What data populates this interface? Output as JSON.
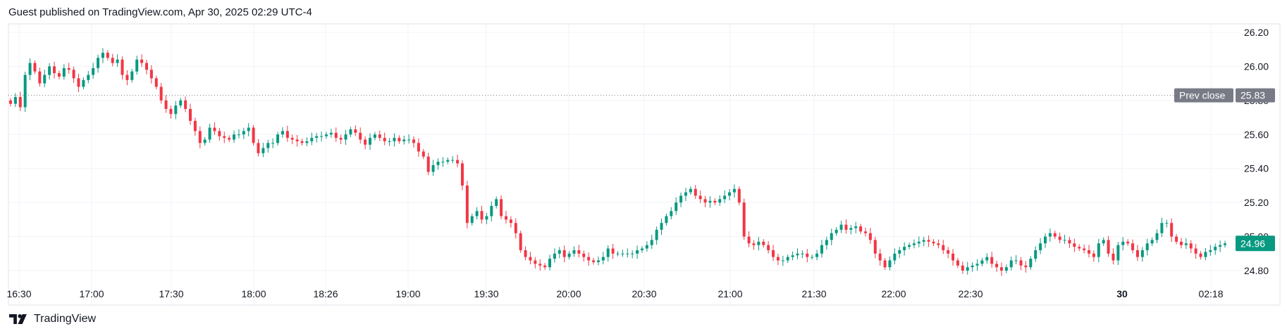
{
  "header": {
    "published_text": "Guest published on TradingView.com, Apr 30, 2025 02:29 UTC-4"
  },
  "footer": {
    "brand": "TradingView"
  },
  "colors": {
    "up": "#089981",
    "down": "#f23645",
    "grid": "#f0f3fa",
    "axis_text": "#131722",
    "prev_close_badge": "#787b86"
  },
  "chart_data": {
    "type": "candlestick",
    "title": "",
    "ylim": [
      24.7,
      26.25
    ],
    "y_ticks": [
      "26.20",
      "26.00",
      "25.80",
      "25.60",
      "25.40",
      "25.20",
      "25.00",
      "24.80"
    ],
    "x_ticks": [
      {
        "label": "16:30",
        "bold": false
      },
      {
        "label": "17:00",
        "bold": false
      },
      {
        "label": "17:30",
        "bold": false
      },
      {
        "label": "18:00",
        "bold": false
      },
      {
        "label": "18:26",
        "bold": false
      },
      {
        "label": "19:00",
        "bold": false
      },
      {
        "label": "19:30",
        "bold": false
      },
      {
        "label": "20:00",
        "bold": false
      },
      {
        "label": "20:30",
        "bold": false
      },
      {
        "label": "21:00",
        "bold": false
      },
      {
        "label": "21:30",
        "bold": false
      },
      {
        "label": "22:00",
        "bold": false
      },
      {
        "label": "22:30",
        "bold": false
      },
      {
        "label": "30",
        "bold": true
      },
      {
        "label": "02:18",
        "bold": false
      }
    ],
    "prev_close": {
      "label": "Prev close",
      "value": "25.83",
      "price": 25.83
    },
    "last_price": {
      "value": "24.96",
      "price": 24.96
    },
    "close_path": [
      25.78,
      25.82,
      25.76,
      25.95,
      26.02,
      25.97,
      25.9,
      25.95,
      26.0,
      25.96,
      25.94,
      25.99,
      25.98,
      25.93,
      25.88,
      25.92,
      25.95,
      25.99,
      26.05,
      26.08,
      26.05,
      26.02,
      26.04,
      25.95,
      25.92,
      25.97,
      26.04,
      26.02,
      25.98,
      25.93,
      25.88,
      25.8,
      25.75,
      25.72,
      25.77,
      25.8,
      25.75,
      25.68,
      25.62,
      25.55,
      25.57,
      25.64,
      25.62,
      25.59,
      25.58,
      25.57,
      25.6,
      25.6,
      25.62,
      25.64,
      25.55,
      25.49,
      25.52,
      25.55,
      25.55,
      25.6,
      25.62,
      25.58,
      25.57,
      25.56,
      25.55,
      25.56,
      25.58,
      25.59,
      25.59,
      25.6,
      25.61,
      25.58,
      25.57,
      25.6,
      25.63,
      25.61,
      25.57,
      25.54,
      25.58,
      25.6,
      25.58,
      25.56,
      25.56,
      25.58,
      25.56,
      25.57,
      25.57,
      25.55,
      25.5,
      25.47,
      25.38,
      25.42,
      25.44,
      25.44,
      25.45,
      25.45,
      25.43,
      25.3,
      25.08,
      25.12,
      25.15,
      25.1,
      25.12,
      25.18,
      25.22,
      25.12,
      25.1,
      25.08,
      25.02,
      24.92,
      24.88,
      24.86,
      24.84,
      24.83,
      24.82,
      24.87,
      24.9,
      24.92,
      24.88,
      24.9,
      24.92,
      24.9,
      24.88,
      24.86,
      24.85,
      24.86,
      24.88,
      24.93,
      24.9,
      24.9,
      24.9,
      24.9,
      24.9,
      24.92,
      24.93,
      24.95,
      24.98,
      25.04,
      25.08,
      25.12,
      25.15,
      25.2,
      25.24,
      25.26,
      25.28,
      25.24,
      25.22,
      25.2,
      25.21,
      25.2,
      25.22,
      25.24,
      25.26,
      25.28,
      25.2,
      25.0,
      24.96,
      24.95,
      24.97,
      24.95,
      24.92,
      24.88,
      24.86,
      24.86,
      24.88,
      24.89,
      24.9,
      24.9,
      24.88,
      24.88,
      24.9,
      24.95,
      24.98,
      25.02,
      25.04,
      25.07,
      25.04,
      25.05,
      25.06,
      25.03,
      25.02,
      24.98,
      24.9,
      24.86,
      24.82,
      24.86,
      24.9,
      24.92,
      24.94,
      24.95,
      24.96,
      24.97,
      24.98,
      24.97,
      24.96,
      24.95,
      24.92,
      24.9,
      24.86,
      24.83,
      24.8,
      24.82,
      24.83,
      24.84,
      24.86,
      24.88,
      24.84,
      24.82,
      24.8,
      24.82,
      24.86,
      24.86,
      24.83,
      24.82,
      24.87,
      24.92,
      24.96,
      25.0,
      25.02,
      25.0,
      24.98,
      24.98,
      24.96,
      24.94,
      24.93,
      24.92,
      24.9,
      24.88,
      24.96,
      24.98,
      24.9,
      24.86,
      24.95,
      24.97,
      24.96,
      24.92,
      24.88,
      24.92,
      24.96,
      24.98,
      25.02,
      25.08,
      25.08,
      25.0,
      24.97,
      24.95,
      24.96,
      24.93,
      24.9,
      24.88,
      24.91,
      24.92,
      24.94,
      24.95,
      24.96
    ]
  }
}
